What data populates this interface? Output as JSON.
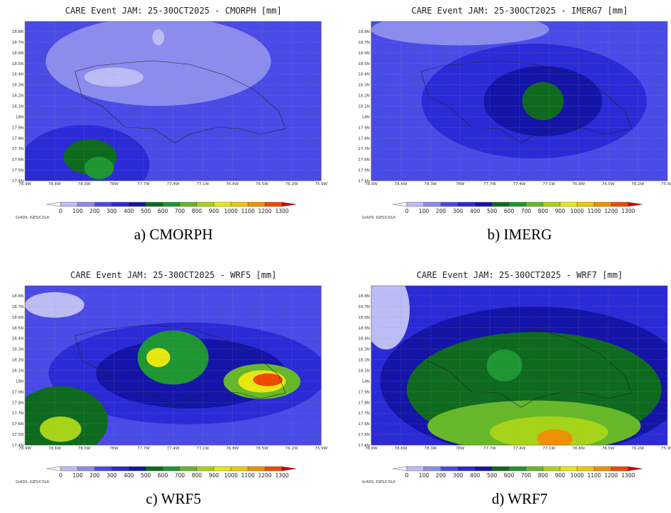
{
  "panels": [
    {
      "title": "CARE Event JAM: 25-30OCT2025 - CMORPH [mm]",
      "caption": "a) CMORPH"
    },
    {
      "title": "CARE Event JAM: 25-30OCT2025 - IMERG7 [mm]",
      "caption": "b) IMERG"
    },
    {
      "title": "CARE Event JAM: 25-30OCT2025 - WRF5 [mm]",
      "caption": "c) WRF5"
    },
    {
      "title": "CARE Event JAM: 25-30OCT2025 - WRF7 [mm]",
      "caption": "d) WRF7"
    }
  ],
  "axes": {
    "xticks": [
      "78.9W",
      "78.6W",
      "78.3W",
      "78W",
      "77.7W",
      "77.4W",
      "77.1W",
      "76.8W",
      "76.5W",
      "76.2W",
      "75.9W"
    ],
    "yticks": [
      "18.8N",
      "18.7N",
      "18.6N",
      "18.5N",
      "18.4N",
      "18.3N",
      "18.2N",
      "18.1N",
      "18N",
      "17.9N",
      "17.8N",
      "17.7N",
      "17.6N",
      "17.5N",
      "17.4N"
    ]
  },
  "colorbar": {
    "labels": [
      0,
      100,
      200,
      300,
      400,
      500,
      600,
      700,
      800,
      900,
      1000,
      1100,
      1200,
      1300
    ],
    "colors": [
      "#f4f4ff",
      "#bcbcf6",
      "#8c8cee",
      "#4a4ae6",
      "#2a2ad6",
      "#1414a8",
      "#0e6a1e",
      "#1e9632",
      "#66b828",
      "#a8d418",
      "#e8e810",
      "#f0c800",
      "#f09000",
      "#f04800",
      "#d80000"
    ]
  },
  "footer": "GrADS: IGES/COLA"
}
